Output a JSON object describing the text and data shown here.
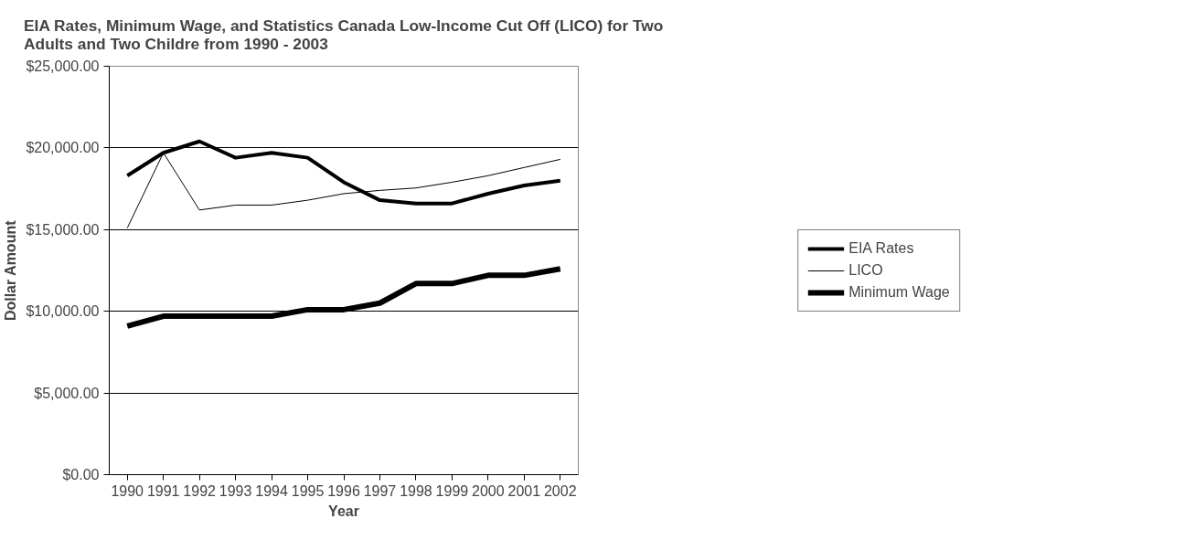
{
  "chart_data": {
    "type": "line",
    "title": "EIA Rates, Minimum Wage, and Statistics Canada Low-Income Cut Off (LICO) for Two Adults and Two Childre from 1990 - 2003",
    "xlabel": "Year",
    "ylabel": "Dollar Amount",
    "categories": [
      "1990",
      "1991",
      "1992",
      "1993",
      "1994",
      "1995",
      "1996",
      "1997",
      "1998",
      "1999",
      "2000",
      "2001",
      "2002"
    ],
    "series": [
      {
        "name": "EIA Rates",
        "color": "#000000",
        "values": [
          18300,
          19700,
          20400,
          19400,
          19700,
          19400,
          17900,
          16800,
          16600,
          16600,
          17200,
          17700,
          18000
        ]
      },
      {
        "name": "LICO",
        "color": "#000000",
        "values": [
          15100,
          19700,
          16200,
          16500,
          16500,
          16800,
          17200,
          17400,
          17550,
          17900,
          18300,
          18800,
          19300
        ]
      },
      {
        "name": "Minimum Wage",
        "color": "#000000",
        "values": [
          9100,
          9700,
          9700,
          9700,
          9700,
          10100,
          10100,
          10500,
          11700,
          11700,
          12200,
          12200,
          12600
        ]
      }
    ],
    "ylim": [
      0,
      25000
    ],
    "yticks": [
      {
        "value": 0,
        "label": "$0.00"
      },
      {
        "value": 5000,
        "label": "$5,000.00"
      },
      {
        "value": 10000,
        "label": "$10,000.00"
      },
      {
        "value": 15000,
        "label": "$15,000.00"
      },
      {
        "value": 20000,
        "label": "$20,000.00"
      },
      {
        "value": 25000,
        "label": "$25,000.00"
      }
    ],
    "grid": "y",
    "legend": "right",
    "marker": "none",
    "line_style": "solid"
  }
}
